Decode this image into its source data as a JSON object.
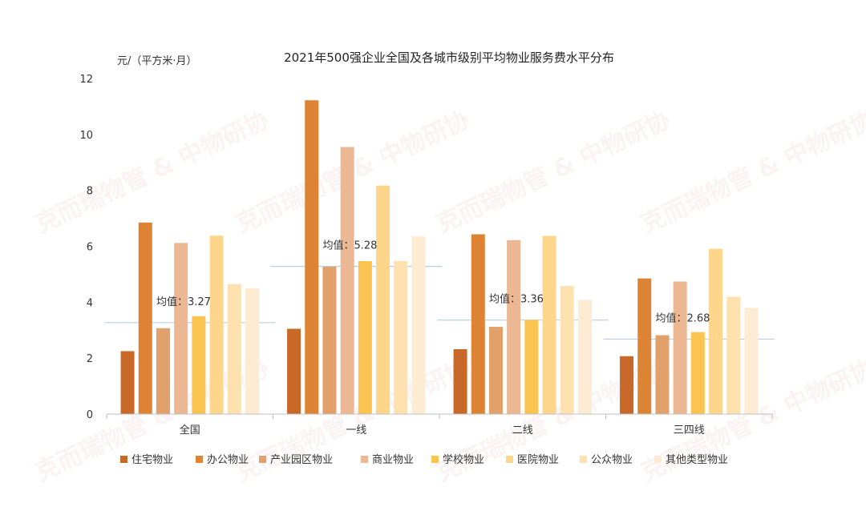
{
  "watermark": "克而瑞物管 & 中物研协",
  "chart_data": {
    "type": "bar",
    "title": "2021年500强企业全国及各城市级别平均物业服务费水平分布",
    "ylabel": "元/（平方米·月）",
    "ylim": [
      0,
      12
    ],
    "yticks": [
      0,
      2,
      4,
      6,
      8,
      10,
      12
    ],
    "categories": [
      "全国",
      "一线",
      "二线",
      "三四线"
    ],
    "series": [
      {
        "name": "住宅物业",
        "color": "#c8692a",
        "values": [
          2.25,
          3.05,
          2.32,
          2.07
        ]
      },
      {
        "name": "办公物业",
        "color": "#dd8434",
        "values": [
          6.85,
          11.22,
          6.43,
          4.85
        ]
      },
      {
        "name": "产业园区物业",
        "color": "#e2a06b",
        "values": [
          3.07,
          5.27,
          3.12,
          2.82
        ]
      },
      {
        "name": "商业物业",
        "color": "#ecb793",
        "values": [
          6.12,
          9.55,
          6.22,
          4.74
        ]
      },
      {
        "name": "学校物业",
        "color": "#fbc34f",
        "values": [
          3.5,
          5.47,
          3.37,
          2.93
        ]
      },
      {
        "name": "医院物业",
        "color": "#fdd68b",
        "values": [
          6.38,
          8.17,
          6.37,
          5.91
        ]
      },
      {
        "name": "公众物业",
        "color": "#fde2b0",
        "values": [
          4.65,
          5.47,
          4.58,
          4.2
        ]
      },
      {
        "name": "其他类型物业",
        "color": "#fdecd3",
        "values": [
          4.5,
          6.35,
          4.08,
          3.8
        ]
      }
    ],
    "averages": [
      {
        "label": "均值：3.27",
        "value": 3.27
      },
      {
        "label": "均值：5.28",
        "value": 5.28
      },
      {
        "label": "均值：3.36",
        "value": 3.36
      },
      {
        "label": "均值：2.68",
        "value": 2.68
      }
    ],
    "average_line_color": "#b9cfe3",
    "legend_position": "bottom",
    "grid": false
  }
}
